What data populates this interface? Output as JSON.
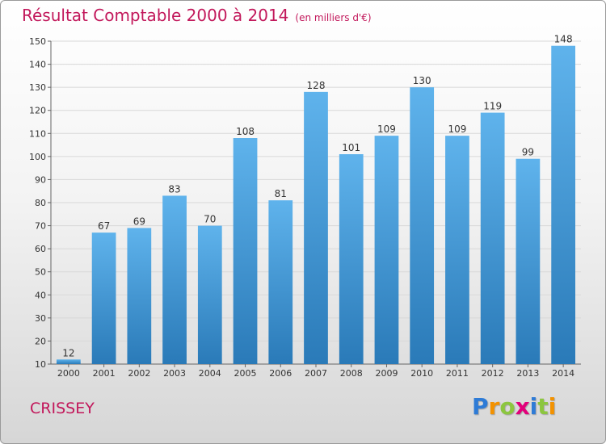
{
  "header": {
    "title": "Résultat Comptable 2000 à 2014",
    "subtitle": "(en milliers d'€)"
  },
  "footer": {
    "place": "CRISSEY",
    "logo_letters": [
      "P",
      "r",
      "o",
      "x",
      "i",
      "t",
      "i"
    ],
    "logo_colors": [
      "#2e7bd6",
      "#f39200",
      "#8cc63f",
      "#e2007a",
      "#2e7bd6",
      "#8cc63f",
      "#f39200"
    ]
  },
  "colors": {
    "title": "#c2185b",
    "bar_top": "#5fb3ec",
    "bar_bottom": "#2a7ab8",
    "grid": "#d8d8d8",
    "axis": "#666666"
  },
  "chart_data": {
    "type": "bar",
    "title": "Résultat Comptable 2000 à 2014",
    "subtitle": "(en milliers d'€)",
    "categories": [
      "2000",
      "2001",
      "2002",
      "2003",
      "2004",
      "2005",
      "2006",
      "2007",
      "2008",
      "2009",
      "2010",
      "2011",
      "2012",
      "2013",
      "2014"
    ],
    "values": [
      12,
      67,
      69,
      83,
      70,
      108,
      81,
      128,
      101,
      109,
      130,
      109,
      119,
      99,
      148
    ],
    "ylim": [
      10,
      150
    ],
    "yticks": [
      10,
      20,
      30,
      40,
      50,
      60,
      70,
      80,
      90,
      100,
      110,
      120,
      130,
      140,
      150
    ],
    "grid": true,
    "data_labels": true
  }
}
